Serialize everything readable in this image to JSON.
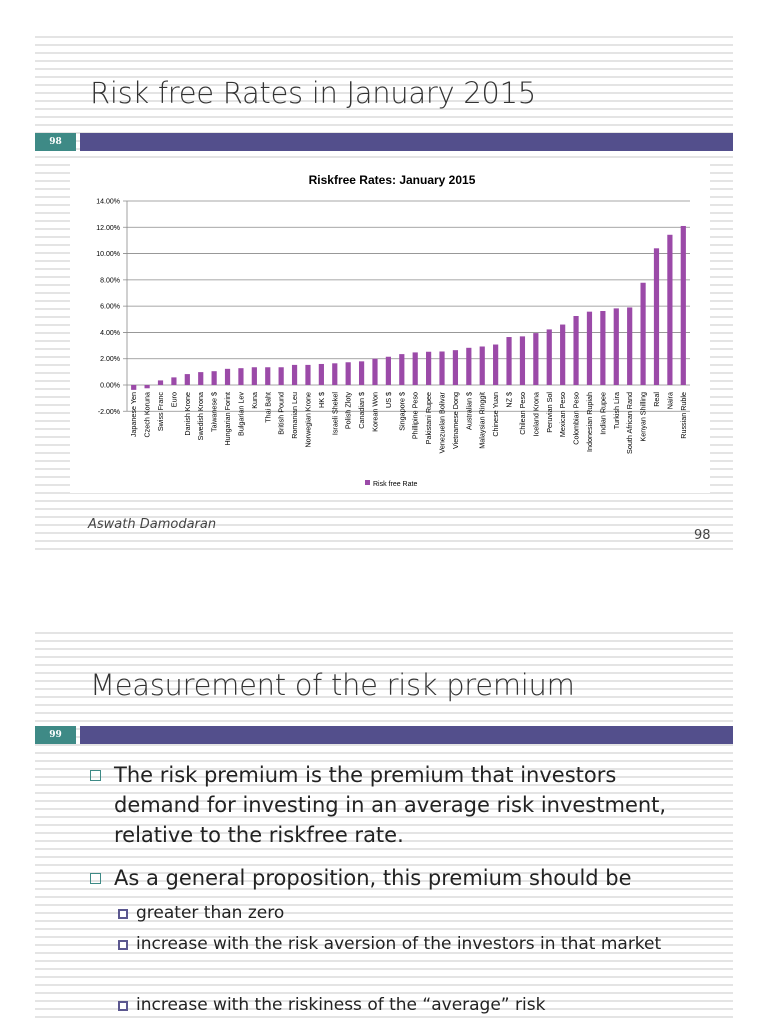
{
  "slide1": {
    "title": "Risk free Rates in January 2015",
    "number": "98",
    "author": "Aswath Damodaran",
    "page": "98"
  },
  "slide2": {
    "title": "Measurement of the risk premium",
    "number": "99",
    "bullets": [
      {
        "text": "The risk premium is the premium that investors demand for investing in an average risk investment, relative to the riskfree rate.",
        "level": 1
      },
      {
        "text": "As a general proposition, this premium should be",
        "level": 1
      },
      {
        "text": "greater than zero",
        "level": 2
      },
      {
        "text": "increase with the risk aversion of the investors in that market",
        "level": 2
      },
      {
        "text": "increase with the riskiness of the “average” risk",
        "level": 2
      }
    ]
  },
  "chart_data": {
    "type": "bar",
    "title": "Riskfree Rates: January 2015",
    "xlabel": "",
    "ylabel": "",
    "ylim": [
      -2,
      14
    ],
    "yticks": [
      "-2.00%",
      "0.00%",
      "2.00%",
      "4.00%",
      "6.00%",
      "8.00%",
      "10.00%",
      "12.00%",
      "14.00%"
    ],
    "grid": true,
    "legend": "bottom",
    "color": "#9b4aa8",
    "categories": [
      "Japanese Yen",
      "Czech Koruna",
      "Swiss Franc",
      "Euro",
      "Danish Krone",
      "Swedish Krona",
      "Taiwanese $",
      "Hungarian Forint",
      "Bulgarian Lev",
      "Kuna",
      "Thai Baht",
      "British Pound",
      "Romanian Leu",
      "Norwegian Krone",
      "HK $",
      "Israeli Shekel",
      "Polish Zloty",
      "Canadian $",
      "Korean Won",
      "US $",
      "Singapore $",
      "Phillipine Peso",
      "Pakistani Rupee",
      "Venezuelan Bolivar",
      "Vietnamese Dong",
      "Australian $",
      "Malaysian Ringgit",
      "Chinese Yuan",
      "NZ $",
      "Chilean Peso",
      "Iceland Krona",
      "Peruvian Sol",
      "Mexican Peso",
      "Colombian Peso",
      "Indonesian Rupiah",
      "Indian Rupee",
      "Turkish Lira",
      "South African Rand",
      "Kenyan Shilling",
      "Real",
      "Naira",
      "Russian Ruble"
    ],
    "series": [
      {
        "name": "Risk free Rate",
        "values": [
          -0.37,
          -0.25,
          0.35,
          0.58,
          0.83,
          0.98,
          1.05,
          1.23,
          1.28,
          1.35,
          1.35,
          1.35,
          1.53,
          1.53,
          1.6,
          1.65,
          1.73,
          1.8,
          2.0,
          2.15,
          2.35,
          2.48,
          2.53,
          2.55,
          2.65,
          2.83,
          2.93,
          3.08,
          3.65,
          3.7,
          3.95,
          4.23,
          4.6,
          5.25,
          5.58,
          5.63,
          5.83,
          5.9,
          7.78,
          10.4,
          11.43,
          12.1
        ]
      }
    ]
  }
}
